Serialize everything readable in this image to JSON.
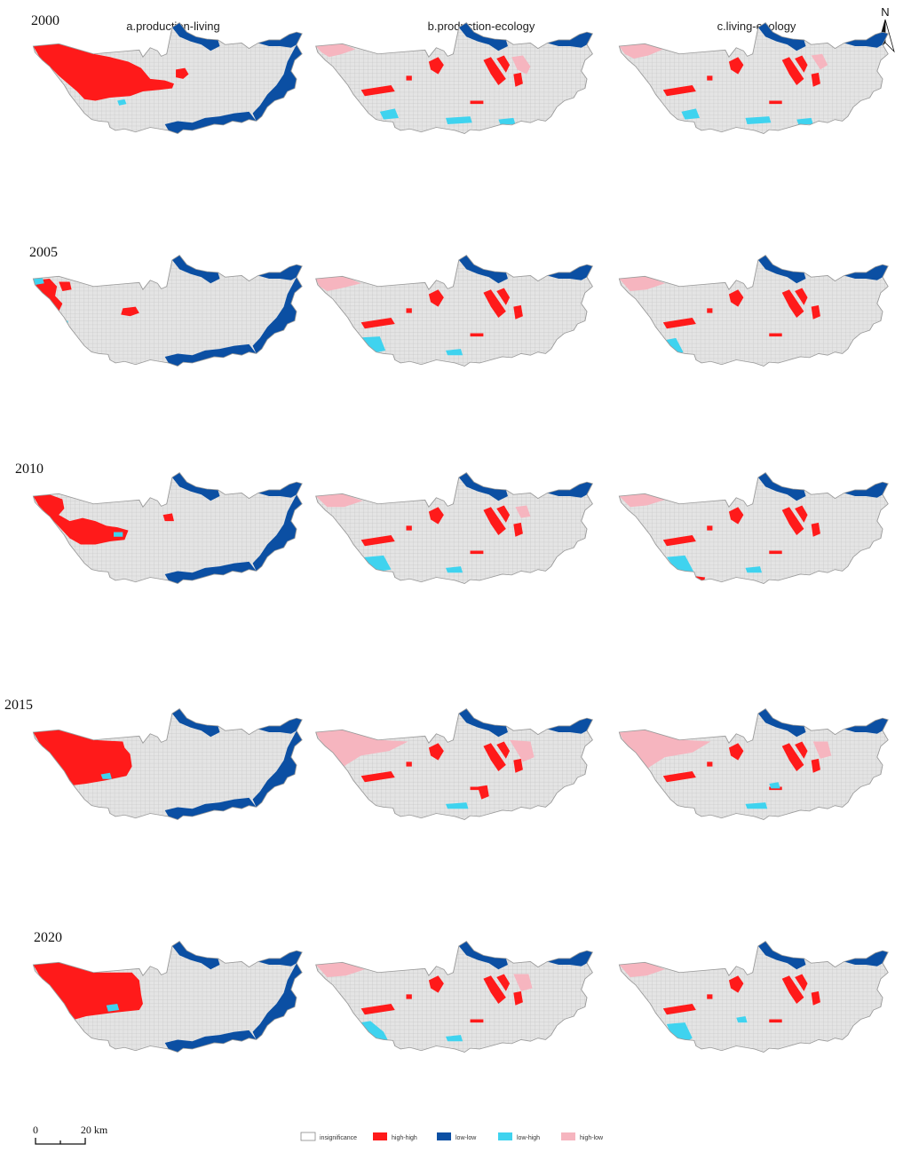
{
  "columns": [
    "a.production-living",
    "b.production-ecology",
    "c.living-ecology"
  ],
  "years": [
    "2000",
    "2005",
    "2010",
    "2015",
    "2020"
  ],
  "north_label": "N",
  "scale_bar": {
    "zero_label": "0",
    "end_label": "20 km"
  },
  "legend": [
    {
      "label": "insignificance",
      "color": "#ffffff",
      "key": "insignificance"
    },
    {
      "label": "high-high",
      "color": "#ff1a1a",
      "key": "hh"
    },
    {
      "label": "low-low",
      "color": "#0b4fa3",
      "key": "ll"
    },
    {
      "label": "low-high",
      "color": "#3fd3ef",
      "key": "lh"
    },
    {
      "label": "high-low",
      "color": "#f6b5bf",
      "key": "hl"
    }
  ],
  "colors": {
    "base_fill": "#e4e4e4",
    "grid_line": "#b9b9b9",
    "outline": "#9a9a9a",
    "high_high": "#ff1a1a",
    "low_low": "#0b4fa3",
    "low_high": "#3fd3ef",
    "high_low": "#f6b5bf"
  }
}
